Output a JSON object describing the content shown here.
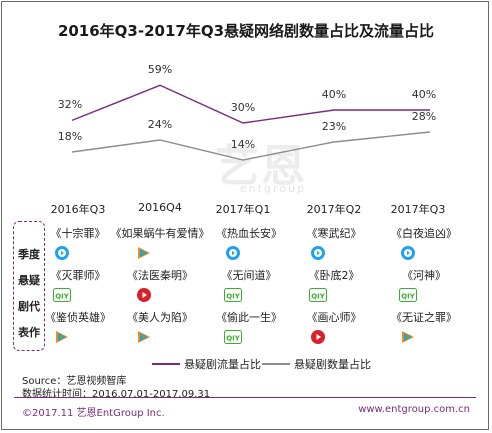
{
  "title": "2016年Q3-2017年Q3悬疑网络剧数量占比及流量占比",
  "watermark": {
    "text": "艺恩",
    "sub": "entgroup"
  },
  "chart_data": {
    "type": "line",
    "categories": [
      "2016年Q3",
      "2016Q4",
      "2017年Q1",
      "2017年Q2",
      "2017年Q3"
    ],
    "series": [
      {
        "name": "悬疑剧流量占比",
        "values": [
          32,
          59,
          30,
          40,
          40
        ],
        "labels": [
          "32%",
          "59%",
          "30%",
          "40%",
          "40%"
        ],
        "color": "#7a2a7e"
      },
      {
        "name": "悬疑剧数量占比",
        "values": [
          18,
          24,
          14,
          23,
          28
        ],
        "labels": [
          "18%",
          "24%",
          "14%",
          "23%",
          "28%"
        ],
        "color": "#8c8c8c"
      }
    ],
    "y_unit": "%"
  },
  "row_labels": [
    "季度",
    "悬疑",
    "剧代",
    "表作"
  ],
  "shows": [
    [
      {
        "title": "《十宗罪》",
        "platform": "youku-icon"
      },
      {
        "title": "《灭罪师》",
        "platform": "iqiyi-icon"
      },
      {
        "title": "《鉴侦英雄》",
        "platform": "tencent-icon"
      }
    ],
    [
      {
        "title": "《如果蜗牛有爱情》",
        "platform": "tencent-icon"
      },
      {
        "title": "《法医秦明》",
        "platform": "sohu-icon"
      },
      {
        "title": "《美人为陷》",
        "platform": "tencent-icon"
      }
    ],
    [
      {
        "title": "《热血长安》",
        "platform": "youku-icon"
      },
      {
        "title": "《无间道》",
        "platform": "iqiyi-icon"
      },
      {
        "title": "《偷此一生》",
        "platform": "iqiyi-icon"
      }
    ],
    [
      {
        "title": "《寒武纪》",
        "platform": "youku-icon"
      },
      {
        "title": "《卧底2》",
        "platform": "iqiyi-icon"
      },
      {
        "title": "《画心师》",
        "platform": "sohu-icon"
      }
    ],
    [
      {
        "title": "《白夜追凶》",
        "platform": "youku-icon"
      },
      {
        "title": "《河神》",
        "platform": "iqiyi-icon"
      },
      {
        "title": "《无证之罪》",
        "platform": "tencent-icon"
      }
    ]
  ],
  "platform_marks": {
    "iqiyi": "QIY"
  },
  "legend": [
    "悬疑剧流量占比",
    "悬疑剧数量占比"
  ],
  "source": "Source：艺恩视频智库",
  "period": "数据统计时间：2016.07.01-2017.09.31",
  "footer_left": "©2017.11 艺恩EntGroup Inc.",
  "footer_right": "www.entgroup.com.cn"
}
